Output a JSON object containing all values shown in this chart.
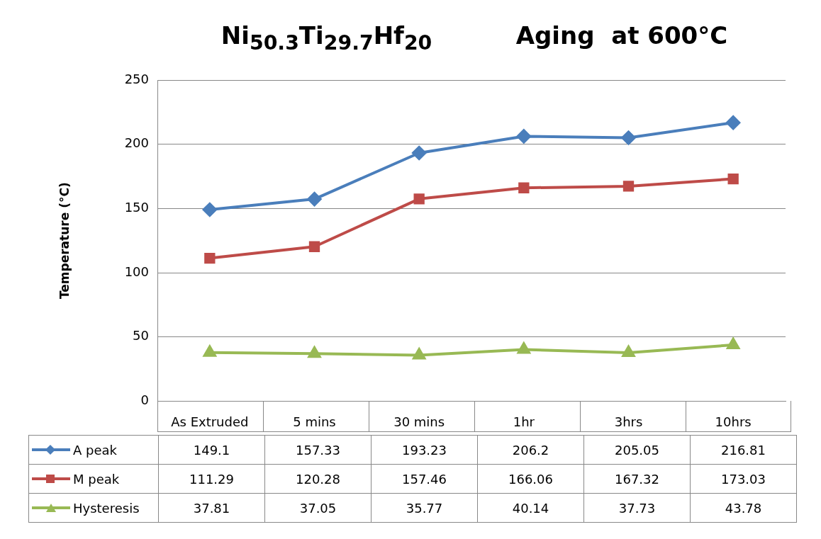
{
  "chart_data": {
    "type": "line",
    "title": "Ni$_{50.3}$Ti$_{29.7}$Hf$_{20}$          Aging  at 600°C",
    "ylabel": "Temperature (°C)",
    "categories": [
      "As Extruded",
      "5 mins",
      "30 mins",
      "1hr",
      "3hrs",
      "10hrs"
    ],
    "series": [
      {
        "name": "A peak",
        "color": "#4a7ebb",
        "marker": "diamond",
        "values": [
          149.1,
          157.33,
          193.23,
          206.2,
          205.05,
          216.81
        ]
      },
      {
        "name": "M peak",
        "color": "#be4b48",
        "marker": "square",
        "values": [
          111.29,
          120.28,
          157.46,
          166.06,
          167.32,
          173.03
        ]
      },
      {
        "name": "Hysteresis",
        "color": "#98b954",
        "marker": "triangle",
        "values": [
          37.81,
          37.05,
          35.77,
          40.14,
          37.73,
          43.78
        ]
      }
    ],
    "ylim": [
      0,
      250
    ],
    "yticks": [
      0,
      50,
      100,
      150,
      200,
      250
    ],
    "grid": "y",
    "legend": "bottom",
    "data_labels": true,
    "line_style": "solid"
  }
}
